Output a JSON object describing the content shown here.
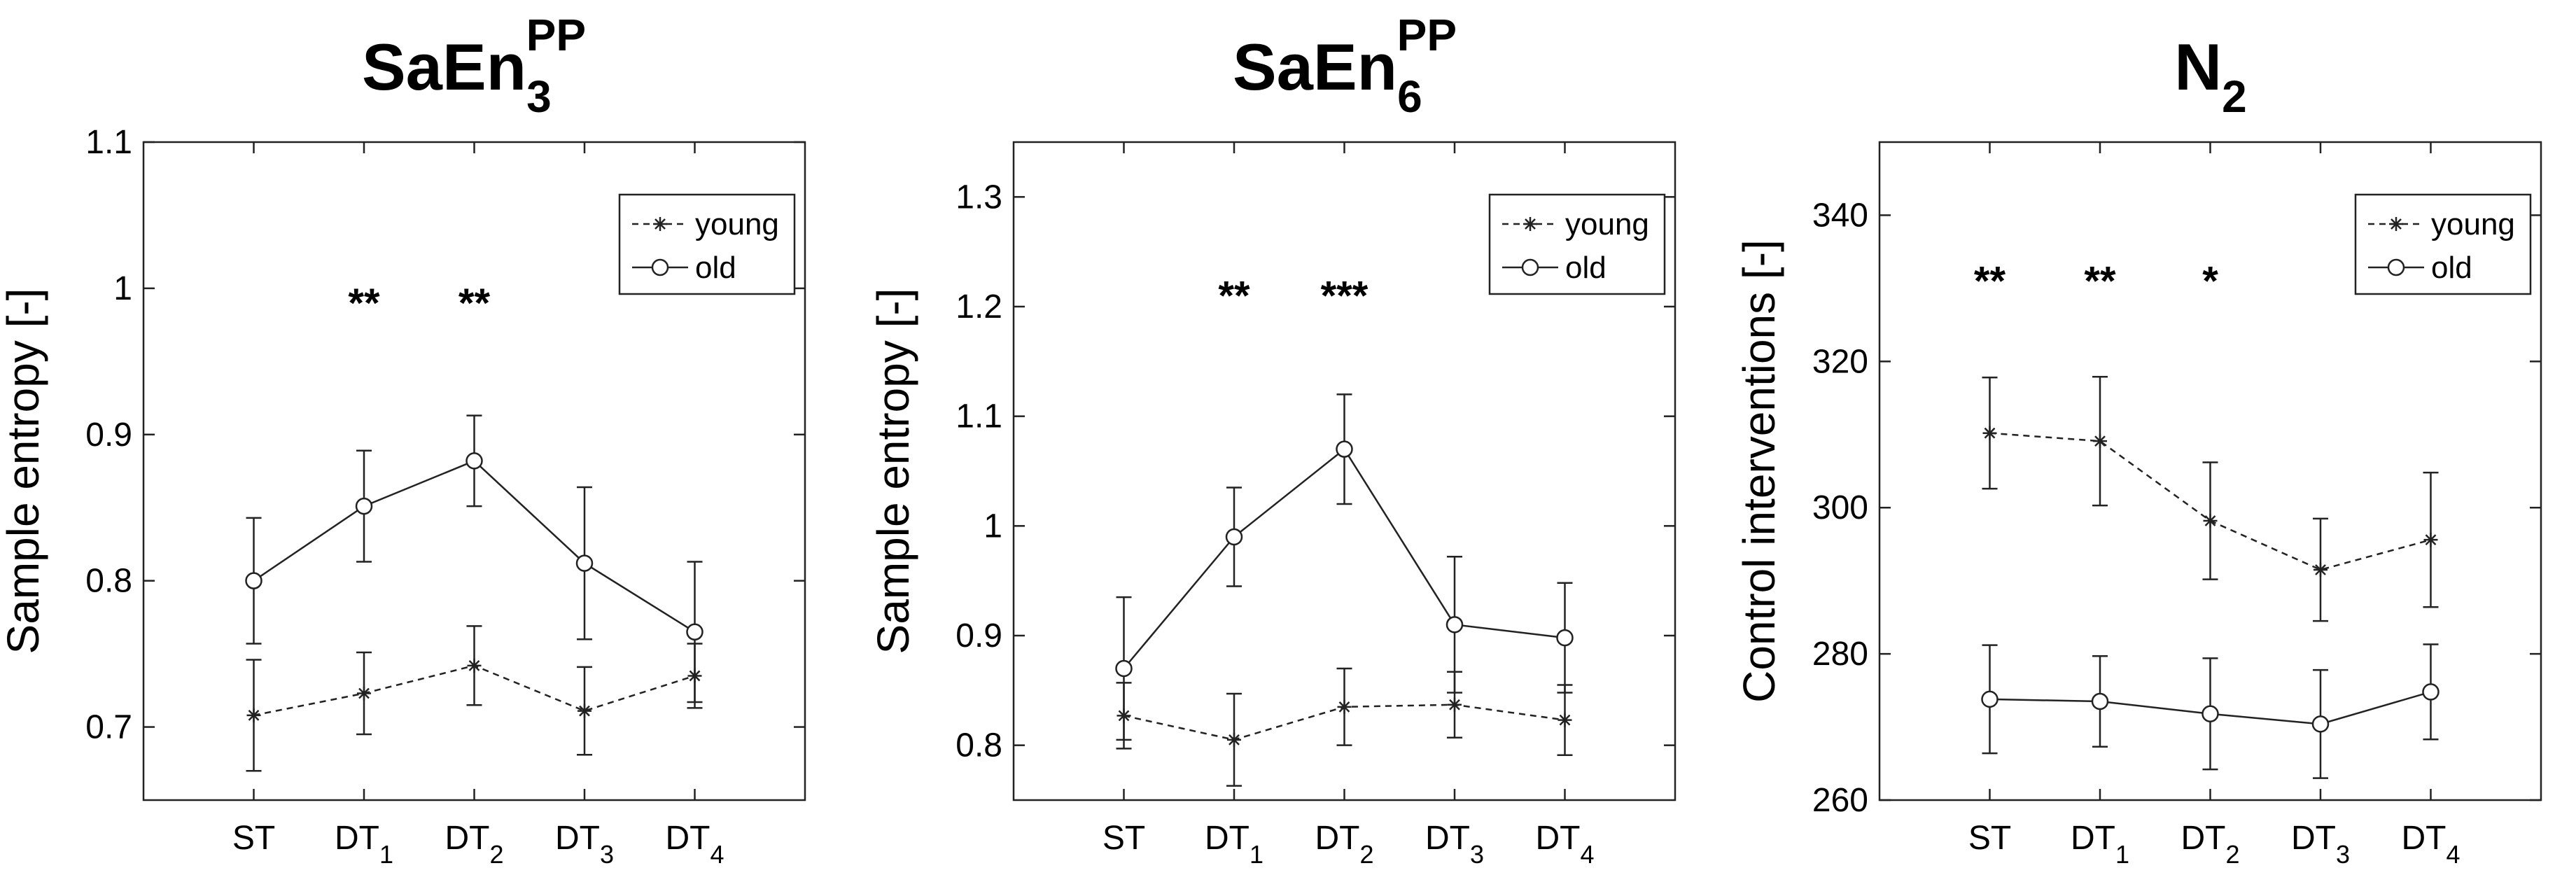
{
  "charts": [
    {
      "title": {
        "base": "SaEn",
        "sub": "3",
        "sup": "PP"
      },
      "ylabel": "Sample entropy [-]",
      "ylim": [
        0.65,
        1.1
      ],
      "yticks": [
        "0.7",
        "0.8",
        "0.9",
        "1",
        "1.1"
      ],
      "ytick_values": [
        0.7,
        0.8,
        0.9,
        1.0,
        1.1
      ],
      "categories": [
        {
          "base": "ST",
          "sub": ""
        },
        {
          "base": "DT",
          "sub": "1"
        },
        {
          "base": "DT",
          "sub": "2"
        },
        {
          "base": "DT",
          "sub": "3"
        },
        {
          "base": "DT",
          "sub": "4"
        }
      ],
      "series": [
        {
          "name": "young",
          "style": "dashed",
          "marker": "asterisk",
          "values": [
            0.708,
            0.723,
            0.742,
            0.711,
            0.735
          ],
          "errors": [
            0.038,
            0.028,
            0.027,
            0.03,
            0.022
          ]
        },
        {
          "name": "old",
          "style": "solid",
          "marker": "circle",
          "values": [
            0.8,
            0.851,
            0.882,
            0.812,
            0.765
          ],
          "errors": [
            0.043,
            0.038,
            0.031,
            0.052,
            0.048
          ]
        }
      ],
      "significance": [
        {
          "category_index": 1,
          "label": "**",
          "y": 0.99
        },
        {
          "category_index": 2,
          "label": "**",
          "y": 0.99
        }
      ]
    },
    {
      "title": {
        "base": "SaEn",
        "sub": "6",
        "sup": "PP"
      },
      "ylabel": "Sample entropy [-]",
      "ylim": [
        0.75,
        1.35
      ],
      "yticks": [
        "0.8",
        "0.9",
        "1",
        "1.1",
        "1.2",
        "1.3"
      ],
      "ytick_values": [
        0.8,
        0.9,
        1.0,
        1.1,
        1.2,
        1.3
      ],
      "categories": [
        {
          "base": "ST",
          "sub": ""
        },
        {
          "base": "DT",
          "sub": "1"
        },
        {
          "base": "DT",
          "sub": "2"
        },
        {
          "base": "DT",
          "sub": "3"
        },
        {
          "base": "DT",
          "sub": "4"
        }
      ],
      "series": [
        {
          "name": "young",
          "style": "dashed",
          "marker": "asterisk",
          "values": [
            0.827,
            0.805,
            0.835,
            0.837,
            0.823
          ],
          "errors": [
            0.03,
            0.042,
            0.035,
            0.03,
            0.032
          ]
        },
        {
          "name": "old",
          "style": "solid",
          "marker": "circle",
          "values": [
            0.87,
            0.99,
            1.07,
            0.91,
            0.898
          ],
          "errors": [
            0.065,
            0.045,
            0.05,
            0.062,
            0.05
          ]
        }
      ],
      "significance": [
        {
          "category_index": 1,
          "label": "**",
          "y": 1.21
        },
        {
          "category_index": 2,
          "label": "***",
          "y": 1.21
        }
      ]
    },
    {
      "title": {
        "base": "N",
        "sub": "2",
        "sup": ""
      },
      "ylabel": "Control interventions [-]",
      "ylim": [
        260,
        350
      ],
      "yticks": [
        "260",
        "280",
        "300",
        "320",
        "340"
      ],
      "ytick_values": [
        260,
        280,
        300,
        320,
        340
      ],
      "categories": [
        {
          "base": "ST",
          "sub": ""
        },
        {
          "base": "DT",
          "sub": "1"
        },
        {
          "base": "DT",
          "sub": "2"
        },
        {
          "base": "DT",
          "sub": "3"
        },
        {
          "base": "DT",
          "sub": "4"
        }
      ],
      "series": [
        {
          "name": "young",
          "style": "dashed",
          "marker": "asterisk",
          "values": [
            310.2,
            309.1,
            298.2,
            291.5,
            295.6
          ],
          "errors": [
            7.6,
            8.8,
            8.0,
            7.0,
            9.2
          ]
        },
        {
          "name": "old",
          "style": "solid",
          "marker": "circle",
          "values": [
            273.8,
            273.5,
            271.8,
            270.4,
            274.8
          ],
          "errors": [
            7.4,
            6.2,
            7.6,
            7.4,
            6.5
          ]
        }
      ],
      "significance": [
        {
          "category_index": 0,
          "label": "**",
          "y": 331
        },
        {
          "category_index": 1,
          "label": "**",
          "y": 331
        },
        {
          "category_index": 2,
          "label": "*",
          "y": 331
        }
      ]
    }
  ],
  "chart_data": [
    {
      "type": "line",
      "title": "SaEn3^PP",
      "xlabel": "",
      "ylabel": "Sample entropy [-]",
      "categories": [
        "ST",
        "DT1",
        "DT2",
        "DT3",
        "DT4"
      ],
      "ylim": [
        0.65,
        1.1
      ],
      "series": [
        {
          "name": "young",
          "values": [
            0.708,
            0.723,
            0.742,
            0.711,
            0.735
          ],
          "errors": [
            0.038,
            0.028,
            0.027,
            0.03,
            0.022
          ]
        },
        {
          "name": "old",
          "values": [
            0.8,
            0.851,
            0.882,
            0.812,
            0.765
          ],
          "errors": [
            0.043,
            0.038,
            0.031,
            0.052,
            0.048
          ]
        }
      ],
      "annotations": [
        "** at DT1",
        "** at DT2"
      ],
      "legend": "top-right"
    },
    {
      "type": "line",
      "title": "SaEn6^PP",
      "xlabel": "",
      "ylabel": "Sample entropy [-]",
      "categories": [
        "ST",
        "DT1",
        "DT2",
        "DT3",
        "DT4"
      ],
      "ylim": [
        0.75,
        1.35
      ],
      "series": [
        {
          "name": "young",
          "values": [
            0.827,
            0.805,
            0.835,
            0.837,
            0.823
          ],
          "errors": [
            0.03,
            0.042,
            0.035,
            0.03,
            0.032
          ]
        },
        {
          "name": "old",
          "values": [
            0.87,
            0.99,
            1.07,
            0.91,
            0.898
          ],
          "errors": [
            0.065,
            0.045,
            0.05,
            0.062,
            0.05
          ]
        }
      ],
      "annotations": [
        "** at DT1",
        "*** at DT2"
      ],
      "legend": "top-right"
    },
    {
      "type": "line",
      "title": "N2",
      "xlabel": "",
      "ylabel": "Control interventions [-]",
      "categories": [
        "ST",
        "DT1",
        "DT2",
        "DT3",
        "DT4"
      ],
      "ylim": [
        260,
        350
      ],
      "series": [
        {
          "name": "young",
          "values": [
            310.2,
            309.1,
            298.2,
            291.5,
            295.6
          ],
          "errors": [
            7.6,
            8.8,
            8.0,
            7.0,
            9.2
          ]
        },
        {
          "name": "old",
          "values": [
            273.8,
            273.5,
            271.8,
            270.4,
            274.8
          ],
          "errors": [
            7.4,
            6.2,
            7.6,
            7.4,
            6.5
          ]
        }
      ],
      "annotations": [
        "** at ST",
        "** at DT1",
        "* at DT2"
      ],
      "legend": "top-right"
    }
  ]
}
